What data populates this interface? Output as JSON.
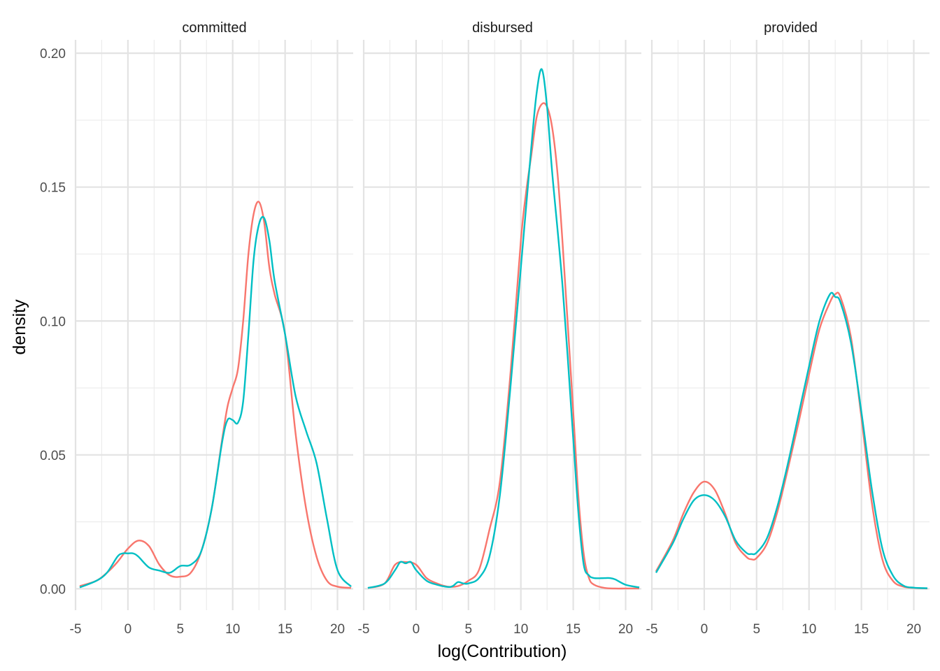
{
  "chart_data": {
    "type": "line",
    "xlabel": "log(Contribution)",
    "ylabel": "density",
    "xlim": [
      -5,
      21.5
    ],
    "ylim": [
      -0.008,
      0.205
    ],
    "x_ticks": [
      "-5",
      "0",
      "5",
      "10",
      "15",
      "20"
    ],
    "x_tick_values": [
      -5,
      0,
      5,
      10,
      15,
      20
    ],
    "y_ticks": [
      "0.00",
      "0.05",
      "0.10",
      "0.15",
      "0.20"
    ],
    "y_tick_values": [
      0,
      0.05,
      0.1,
      0.15,
      0.2
    ],
    "grid": true,
    "legend": "none",
    "colors": [
      "#F8766D",
      "#00BFC4"
    ],
    "facets": [
      {
        "label": "committed",
        "series": [
          {
            "color": "#F8766D",
            "x": [
              -4.6,
              -3,
              -2,
              -1,
              0,
              1,
              2,
              3,
              4,
              5,
              6,
              7,
              8,
              9,
              9.5,
              10,
              10.5,
              11,
              11.5,
              12,
              12.5,
              13,
              13.5,
              14,
              15,
              16,
              17,
              18,
              19,
              20,
              21.3
            ],
            "y": [
              0.001,
              0.003,
              0.006,
              0.01,
              0.015,
              0.018,
              0.016,
              0.009,
              0.005,
              0.0045,
              0.006,
              0.014,
              0.03,
              0.056,
              0.068,
              0.075,
              0.082,
              0.1,
              0.125,
              0.14,
              0.1445,
              0.137,
              0.12,
              0.11,
              0.095,
              0.058,
              0.03,
              0.012,
              0.003,
              0.0008,
              0.0003
            ]
          },
          {
            "color": "#00BFC4",
            "x": [
              -4.6,
              -3,
              -2,
              -1,
              -0.5,
              0,
              0.5,
              1,
              2,
              3,
              4,
              5,
              6,
              7,
              8,
              9,
              9.5,
              10,
              10.5,
              11,
              11.5,
              12,
              12.5,
              13,
              13.5,
              14,
              15,
              16,
              17,
              18,
              19,
              20,
              21.3
            ],
            "y": [
              0.0005,
              0.003,
              0.006,
              0.012,
              0.0132,
              0.0132,
              0.0132,
              0.012,
              0.008,
              0.0068,
              0.006,
              0.0085,
              0.009,
              0.014,
              0.03,
              0.055,
              0.063,
              0.063,
              0.062,
              0.07,
              0.095,
              0.123,
              0.136,
              0.1385,
              0.13,
              0.115,
              0.095,
              0.072,
              0.059,
              0.047,
              0.026,
              0.007,
              0.0008
            ]
          }
        ]
      },
      {
        "label": "disbursed",
        "series": [
          {
            "color": "#F8766D",
            "x": [
              -4.6,
              -3,
              -2,
              -1,
              0,
              1,
              2,
              3,
              4,
              5,
              6,
              7,
              8,
              9,
              10,
              10.5,
              11,
              11.5,
              12,
              12.5,
              13,
              13.5,
              14,
              15,
              15.5,
              16,
              16.5,
              17,
              18,
              19,
              20,
              21.3
            ],
            "y": [
              0.0003,
              0.002,
              0.009,
              0.01,
              0.009,
              0.004,
              0.002,
              0.0008,
              0.001,
              0.003,
              0.007,
              0.022,
              0.04,
              0.08,
              0.13,
              0.148,
              0.162,
              0.176,
              0.181,
              0.18,
              0.172,
              0.155,
              0.128,
              0.066,
              0.034,
              0.013,
              0.004,
              0.0015,
              0.0003,
              0.0001,
              0.0001,
              0.0001
            ]
          },
          {
            "color": "#00BFC4",
            "x": [
              -4.6,
              -3,
              -2,
              -1.5,
              -1,
              -0.5,
              0,
              1,
              2,
              3,
              3.5,
              4,
              4.5,
              5,
              6,
              7,
              8,
              9,
              10,
              11,
              11.5,
              12,
              12.5,
              13,
              14,
              15,
              15.5,
              16,
              16.5,
              17,
              18,
              18.5,
              19,
              20,
              21.3
            ],
            "y": [
              0.0003,
              0.002,
              0.007,
              0.01,
              0.0095,
              0.01,
              0.007,
              0.003,
              0.0015,
              0.0007,
              0.001,
              0.0025,
              0.002,
              0.002,
              0.004,
              0.012,
              0.035,
              0.075,
              0.12,
              0.165,
              0.185,
              0.194,
              0.18,
              0.155,
              0.112,
              0.056,
              0.028,
              0.009,
              0.005,
              0.004,
              0.004,
              0.004,
              0.0035,
              0.0015,
              0.0005
            ]
          }
        ]
      },
      {
        "label": "provided",
        "series": [
          {
            "color": "#F8766D",
            "x": [
              -4.6,
              -3,
              -2,
              -1,
              0,
              1,
              2,
              3,
              4,
              4.5,
              5,
              6,
              7,
              8,
              9,
              10,
              11,
              12,
              12.5,
              13,
              14,
              15,
              16,
              17,
              18,
              19,
              20,
              21.3
            ],
            "y": [
              0.0065,
              0.018,
              0.028,
              0.036,
              0.04,
              0.037,
              0.028,
              0.017,
              0.012,
              0.011,
              0.0115,
              0.017,
              0.029,
              0.045,
              0.062,
              0.08,
              0.097,
              0.107,
              0.11,
              0.109,
              0.094,
              0.064,
              0.032,
              0.011,
              0.003,
              0.0008,
              0.0003,
              0.0001
            ]
          },
          {
            "color": "#00BFC4",
            "x": [
              -4.6,
              -3,
              -2,
              -1,
              0,
              1,
              2,
              3,
              4,
              4.5,
              5,
              6,
              7,
              8,
              9,
              10,
              11,
              12,
              12.5,
              13,
              14,
              15,
              16,
              17,
              18,
              19,
              20,
              21.3
            ],
            "y": [
              0.006,
              0.017,
              0.026,
              0.033,
              0.035,
              0.033,
              0.027,
              0.018,
              0.0135,
              0.013,
              0.0135,
              0.019,
              0.031,
              0.047,
              0.065,
              0.083,
              0.1,
              0.11,
              0.109,
              0.107,
              0.092,
              0.066,
              0.037,
              0.015,
              0.005,
              0.0012,
              0.0004,
              0.0002
            ]
          }
        ]
      }
    ]
  }
}
